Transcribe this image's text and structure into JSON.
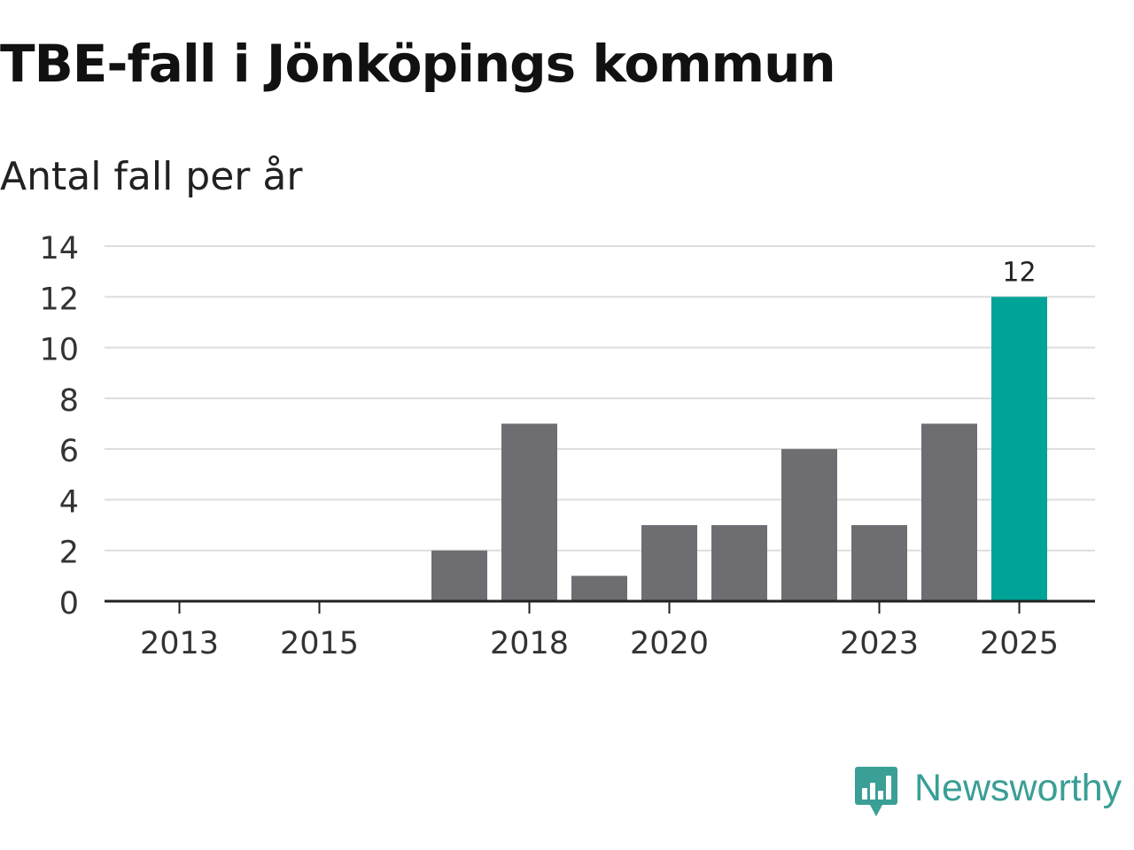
{
  "title": "TBE-fall i Jönköpings kommun",
  "subtitle": "Antal fall per år",
  "brand": {
    "name": "Newsworthy",
    "logo_icon": "newsworthy-bar-chart-bubble-icon",
    "color": "#3a9f96"
  },
  "colors": {
    "bar_default": "#6e6d72",
    "bar_highlight": "#00a398",
    "grid": "#dddddd",
    "axis": "#222222",
    "tick_text": "#333333"
  },
  "chart_data": {
    "type": "bar",
    "title": "TBE-fall i Jönköpings kommun",
    "subtitle": "Antal fall per år",
    "xlabel": "",
    "ylabel": "",
    "categories": [
      2013,
      2014,
      2015,
      2016,
      2017,
      2018,
      2019,
      2020,
      2021,
      2022,
      2023,
      2024,
      2025
    ],
    "values": [
      0,
      0,
      0,
      0,
      2,
      7,
      1,
      3,
      3,
      6,
      3,
      7,
      12
    ],
    "highlight_category": 2025,
    "data_labels": [
      {
        "category": 2025,
        "label": "12"
      }
    ],
    "xticks": [
      2013,
      2015,
      2018,
      2020,
      2023,
      2025
    ],
    "yticks": [
      0,
      2,
      4,
      6,
      8,
      10,
      12,
      14
    ],
    "ylim": [
      0,
      14
    ],
    "grid": true,
    "legend": "none"
  }
}
